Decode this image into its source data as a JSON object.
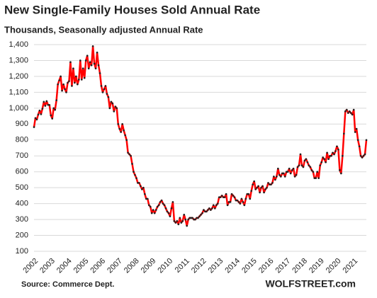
{
  "chart_data": {
    "type": "line",
    "title": "New Single-Family Houses Sold Annual Rate",
    "subtitle": "Thousands, Seasonally adjusted Annual Rate",
    "source": "Source: Commerce Dept.",
    "credit": "WOLFSTREET.com",
    "categories": [
      "2002",
      null,
      null,
      null,
      null,
      null,
      null,
      null,
      null,
      null,
      null,
      null,
      "2003",
      null,
      null,
      null,
      null,
      null,
      null,
      null,
      null,
      null,
      null,
      null,
      "2004",
      null,
      null,
      null,
      null,
      null,
      null,
      null,
      null,
      null,
      null,
      null,
      "2005",
      null,
      null,
      null,
      null,
      null,
      null,
      null,
      null,
      null,
      null,
      null,
      "2006",
      null,
      null,
      null,
      null,
      null,
      null,
      null,
      null,
      null,
      null,
      null,
      "2007",
      null,
      null,
      null,
      null,
      null,
      null,
      null,
      null,
      null,
      null,
      null,
      "2008",
      null,
      null,
      null,
      null,
      null,
      null,
      null,
      null,
      null,
      null,
      null,
      "2009",
      null,
      null,
      null,
      null,
      null,
      null,
      null,
      null,
      null,
      null,
      null,
      "2010",
      null,
      null,
      null,
      null,
      null,
      null,
      null,
      null,
      null,
      null,
      null,
      "2011",
      null,
      null,
      null,
      null,
      null,
      null,
      null,
      null,
      null,
      null,
      null,
      "2012",
      null,
      null,
      null,
      null,
      null,
      null,
      null,
      null,
      null,
      null,
      null,
      "2013",
      null,
      null,
      null,
      null,
      null,
      null,
      null,
      null,
      null,
      null,
      null,
      "2014",
      null,
      null,
      null,
      null,
      null,
      null,
      null,
      null,
      null,
      null,
      null,
      "2015",
      null,
      null,
      null,
      null,
      null,
      null,
      null,
      null,
      null,
      null,
      null,
      "2016",
      null,
      null,
      null,
      null,
      null,
      null,
      null,
      null,
      null,
      null,
      null,
      "2017",
      null,
      null,
      null,
      null,
      null,
      null,
      null,
      null,
      null,
      null,
      null,
      "2018",
      null,
      null,
      null,
      null,
      null,
      null,
      null,
      null,
      null,
      null,
      null,
      "2019",
      null,
      null,
      null,
      null,
      null,
      null,
      null,
      null,
      null,
      null,
      null,
      "2020",
      null,
      null,
      null,
      null,
      null,
      null,
      null,
      null,
      null,
      null,
      null,
      "2021",
      null,
      null,
      null,
      null,
      null,
      null,
      null,
      null,
      null
    ],
    "series": [
      {
        "color": "#ff0000",
        "marker_color": "#222222",
        "values": [
          881,
          938,
          929,
          960,
          985,
          962,
          997,
          1040,
          1015,
          1044,
          1021,
          1020,
          955,
          935,
          1000,
          990,
          1050,
          1150,
          1175,
          1200,
          1110,
          1150,
          1120,
          1100,
          1160,
          1170,
          1290,
          1140,
          1250,
          1160,
          1200,
          1150,
          1180,
          1300,
          1180,
          1250,
          1190,
          1300,
          1330,
          1250,
          1290,
          1270,
          1390,
          1280,
          1250,
          1350,
          1270,
          1220,
          1140,
          1100,
          1120,
          1140,
          1090,
          1070,
          1000,
          1040,
          1030,
          980,
          1010,
          1000,
          900,
          870,
          850,
          900,
          860,
          830,
          800,
          720,
          710,
          700,
          650,
          600,
          580,
          560,
          530,
          530,
          510,
          490,
          500,
          460,
          430,
          430,
          390,
          380,
          340,
          360,
          340,
          360,
          380,
          390,
          410,
          420,
          400,
          390,
          370,
          350,
          340,
          320,
          370,
          410,
          290,
          280,
          290,
          270,
          310,
          280,
          290,
          330,
          300,
          260,
          300,
          310,
          310,
          310,
          300,
          300,
          310,
          310,
          320,
          330,
          340,
          360,
          350,
          350,
          360,
          370,
          360,
          370,
          390,
          370,
          390,
          400,
          440,
          440,
          450,
          440,
          440,
          460,
          390,
          410,
          410,
          460,
          450,
          440,
          420,
          420,
          410,
          400,
          430,
          410,
          390,
          430,
          460,
          460,
          430,
          480,
          520,
          540,
          490,
          500,
          510,
          470,
          500,
          510,
          470,
          490,
          500,
          530,
          520,
          520,
          530,
          570,
          550,
          570,
          620,
          580,
          570,
          590,
          590,
          570,
          600,
          600,
          620,
          590,
          610,
          620,
          570,
          580,
          630,
          640,
          710,
          640,
          630,
          670,
          680,
          660,
          640,
          630,
          610,
          600,
          560,
          560,
          600,
          560,
          640,
          660,
          690,
          680,
          660,
          720,
          680,
          700,
          700,
          720,
          710,
          730,
          760,
          740,
          610,
          590,
          700,
          840,
          980,
          990,
          970,
          980,
          970,
          960,
          990,
          850,
          870,
          800,
          760,
          700,
          690,
          700,
          710,
          800
        ]
      }
    ],
    "ylim": [
      100,
      1400
    ],
    "yticks": [
      100,
      200,
      300,
      400,
      500,
      600,
      700,
      800,
      900,
      {
        "value": 1000,
        "label": "1,000"
      },
      {
        "value": 1100,
        "label": "1,100"
      },
      {
        "value": 1200,
        "label": "1,200"
      },
      {
        "value": 1300,
        "label": "1,300"
      },
      {
        "value": 1400,
        "label": "1,400"
      }
    ],
    "grid": true
  }
}
